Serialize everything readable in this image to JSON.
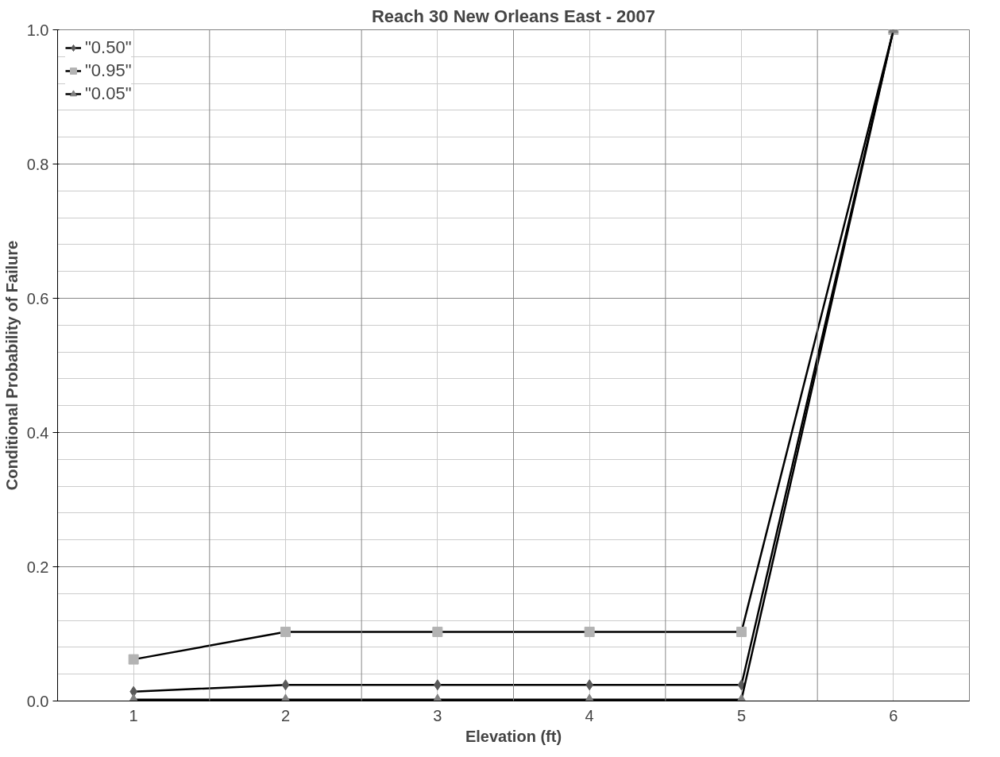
{
  "chart_data": {
    "type": "line",
    "title": "Reach 30 New Orleans East - 2007",
    "xlabel": "Elevation (ft)",
    "ylabel": "Conditional Probability of Failure",
    "categories": [
      "1",
      "2",
      "3",
      "4",
      "5",
      "6"
    ],
    "series": [
      {
        "name": "\"0.50\"",
        "color": "#595959",
        "marker": "diamond",
        "values": [
          0.014,
          0.024,
          0.024,
          0.024,
          0.024,
          1.0
        ]
      },
      {
        "name": "\"0.95\"",
        "color": "#b3b3b3",
        "marker": "square",
        "values": [
          0.062,
          0.103,
          0.103,
          0.103,
          0.103,
          1.0
        ]
      },
      {
        "name": "\"0.05\"",
        "color": "#808080",
        "marker": "triangle",
        "values": [
          0.002,
          0.002,
          0.002,
          0.002,
          0.002,
          1.0
        ]
      }
    ],
    "ylim": [
      0,
      1.0
    ],
    "yticks": [
      {
        "value": 0,
        "label": "0.0"
      },
      0.2,
      0.4,
      0.6,
      0.8,
      {
        "value": 1.0,
        "label": "1.0"
      }
    ],
    "grid": true,
    "legend": "top left",
    "line_style": "solid"
  }
}
